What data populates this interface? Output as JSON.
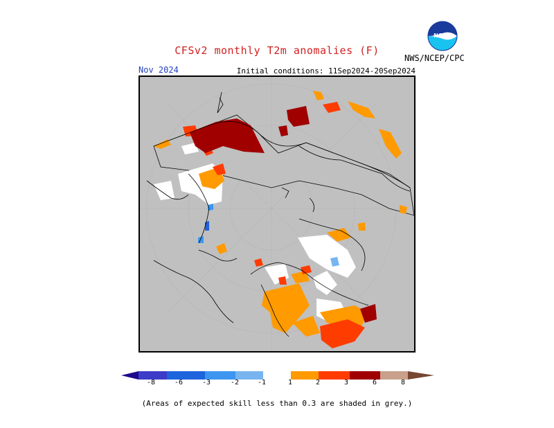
{
  "header": {
    "title": "CFSv2 monthly T2m anomalies (F)",
    "month": "Nov 2024",
    "initial_conditions": "Initial conditions: 11Sep2024-20Sep2024",
    "agency": "NWS/NCEP/CPC",
    "logo_text": "NOAA"
  },
  "map": {
    "projection": "north-polar-stereographic",
    "background_color": "#c0c0c0",
    "no_skill_shade": "grey"
  },
  "colorbar": {
    "labels": [
      "-8",
      "-6",
      "-3",
      "-2",
      "-1",
      "1",
      "2",
      "3",
      "6",
      "8"
    ],
    "colors": [
      "#1e0a8c",
      "#3c3cc8",
      "#1e64dc",
      "#3c96f0",
      "#78b4f0",
      "#ffffff",
      "#ff9a00",
      "#ff3c00",
      "#a00000",
      "#c8a08c",
      "#784632"
    ]
  },
  "note": "(Areas of expected skill less than 0.3 are shaded in grey.)"
}
